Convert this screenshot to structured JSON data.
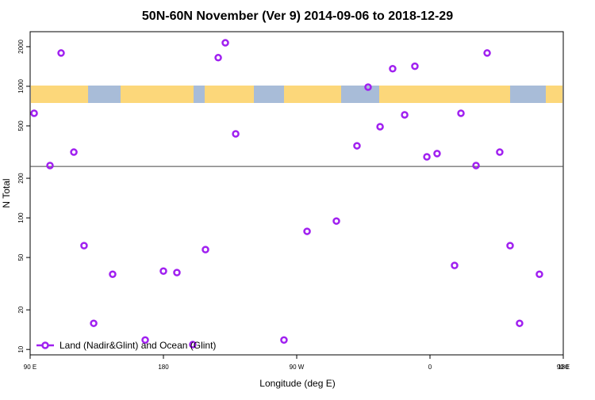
{
  "chart_data": {
    "type": "scatter",
    "title": "50N-60N November (Ver 9)   2014-09-06 to 2018-12-29",
    "x_label": "Longitude (deg E)",
    "y_label": "N Total",
    "xlim": [
      90,
      450
    ],
    "xticks": [
      {
        "value": 90,
        "label": "90 E"
      },
      180,
      {
        "value": 270,
        "label": "90 W"
      },
      {
        "value": 360,
        "label": "0"
      },
      {
        "value": 450,
        "label": "90 E"
      },
      {
        "value": 540,
        "label": "180"
      }
    ],
    "ylim": [
      9.1,
      2600
    ],
    "ylog": true,
    "yticks": [
      10,
      20,
      50,
      100,
      200,
      500,
      1000,
      2000
    ],
    "hline": 246,
    "legend": "bottom-left",
    "series": [
      {
        "name": "Land (Nadir&Glint) and Ocean (Glint)",
        "color": "#a020f0",
        "x": [
          92.7,
          103.4,
          110.9,
          119.5,
          126.4,
          132.9,
          145.7,
          167.7,
          180,
          189.1,
          199.8,
          208.4,
          217,
          221.8,
          228.8,
          261.4,
          277,
          296.8,
          310.7,
          318.2,
          326.3,
          334.8,
          342.9,
          349.8,
          357.9,
          364.8,
          376.6,
          380.9,
          391.1,
          398.6,
          407.1,
          414.1,
          420.5,
          433.9
        ],
        "values": [
          624,
          250,
          1790,
          316,
          61.5,
          15.8,
          37.3,
          11.8,
          39.4,
          38.4,
          10.9,
          57.4,
          1650,
          2140,
          435,
          11.8,
          79,
          94.6,
          353,
          986,
          493,
          1360,
          607,
          1420,
          291,
          308,
          43.5,
          624,
          250,
          1790,
          316,
          61.5,
          15.8,
          37.3
        ]
      }
    ]
  }
}
